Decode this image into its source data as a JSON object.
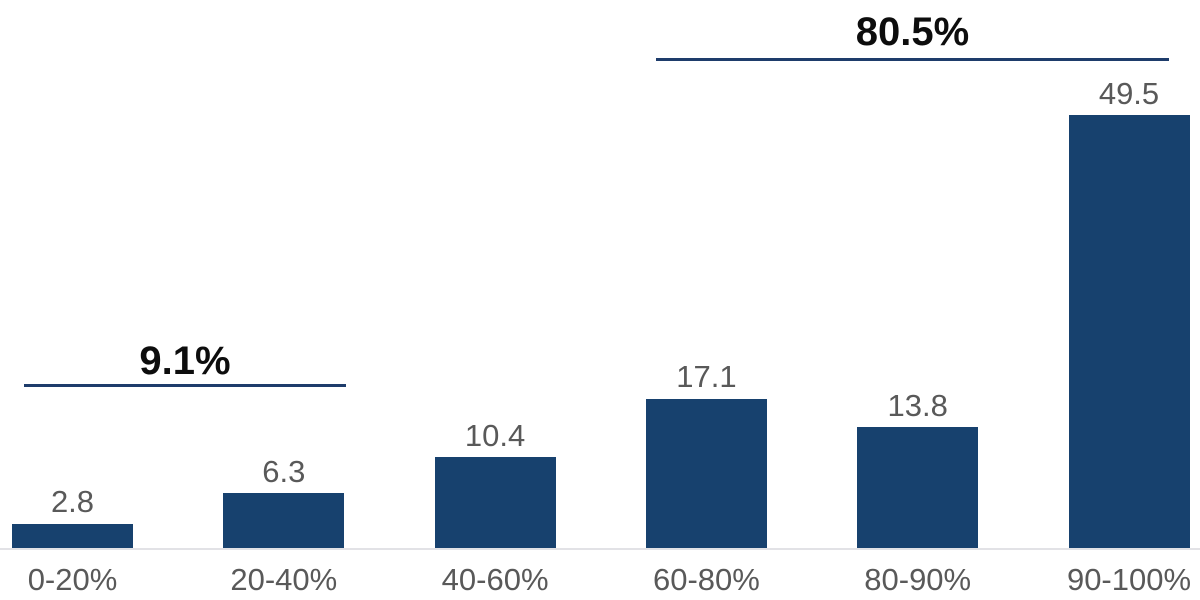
{
  "chart_data": {
    "type": "bar",
    "title": "",
    "xlabel": "",
    "ylabel": "",
    "categories": [
      "0-20%",
      "20-40%",
      "40-60%",
      "60-80%",
      "80-90%",
      "90-100%"
    ],
    "values": [
      2.8,
      6.3,
      10.4,
      17.1,
      13.8,
      49.5
    ],
    "data_labels": [
      "2.8",
      "6.3",
      "10.4",
      "17.1",
      "13.8",
      "49.5"
    ],
    "annotations": [
      {
        "label": "9.1%",
        "from_category": "0-20%",
        "to_category": "20-40%"
      },
      {
        "label": "80.5%",
        "from_category": "60-80%",
        "to_category": "90-100%"
      }
    ],
    "ylim": [
      0,
      63
    ],
    "grid": false,
    "legend": null,
    "axis_lines": "x-only",
    "colors": {
      "bar": "#17416E",
      "annotation_line": "#1E3C6B",
      "annotation_text": "#0D0D0D",
      "data_label": "#595959",
      "axis_label": "#595959",
      "axis_line": "#E2E2E6",
      "background": "#FFFFFF"
    }
  }
}
